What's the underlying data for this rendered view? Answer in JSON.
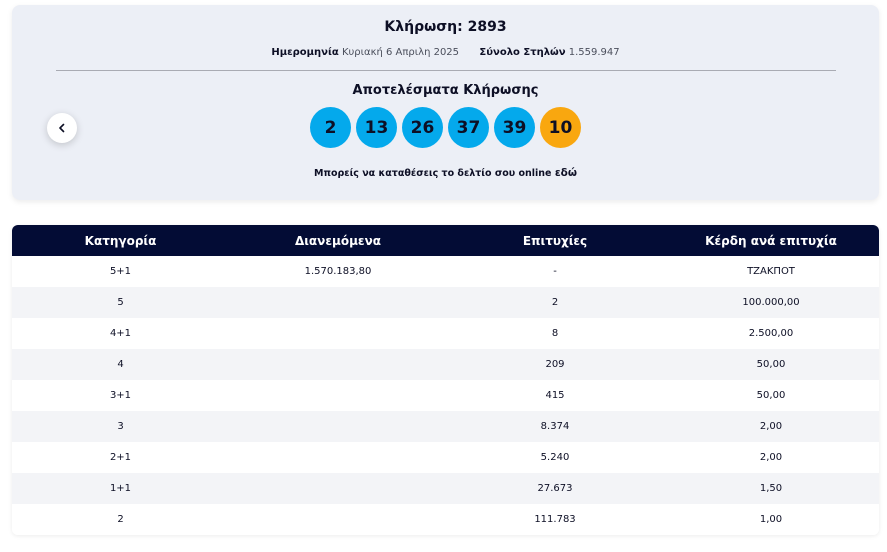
{
  "draw": {
    "title": "Κλήρωση: 2893",
    "date_label": "Ημερομηνία",
    "date_value": "Κυριακή 6 Απριλη 2025",
    "columns_label": "Σύνολο Στηλών",
    "columns_value": "1.559.947",
    "results_title": "Αποτελέσματα Κλήρωσης",
    "numbers": [
      "2",
      "13",
      "26",
      "37",
      "39"
    ],
    "bonus": "10",
    "online_text": "Μπορείς να καταθέσεις το δελτίο σου online",
    "online_link": "εδώ"
  },
  "colors": {
    "ball": "#04a9ec",
    "bonus_ball": "#f9a70f",
    "table_header": "#030c35",
    "card_bg": "#eceff6"
  },
  "icons": {
    "prev": "chevron-left-icon"
  },
  "table": {
    "headers": [
      "Κατηγορία",
      "Διανεμόμενα",
      "Επιτυχίες",
      "Κέρδη ανά επιτυχία"
    ],
    "rows": [
      [
        "5+1",
        "1.570.183,80",
        "-",
        "ΤΖΑΚΠΟΤ"
      ],
      [
        "5",
        "",
        "2",
        "100.000,00"
      ],
      [
        "4+1",
        "",
        "8",
        "2.500,00"
      ],
      [
        "4",
        "",
        "209",
        "50,00"
      ],
      [
        "3+1",
        "",
        "415",
        "50,00"
      ],
      [
        "3",
        "",
        "8.374",
        "2,00"
      ],
      [
        "2+1",
        "",
        "5.240",
        "2,00"
      ],
      [
        "1+1",
        "",
        "27.673",
        "1,50"
      ],
      [
        "2",
        "",
        "111.783",
        "1,00"
      ]
    ]
  }
}
